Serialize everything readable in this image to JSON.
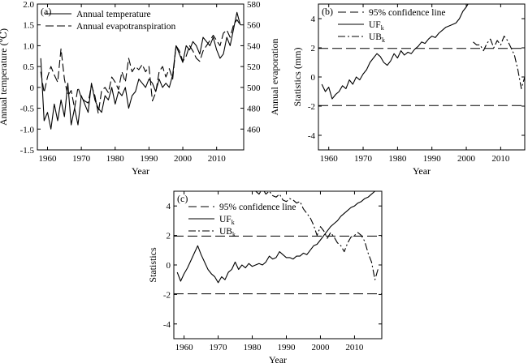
{
  "chart_data": [
    {
      "panel_label": "(a)",
      "type": "line",
      "xlabel": "Year",
      "ylabel": "Annual temperature (℃)",
      "y2label": "Annual evaporation",
      "xlim": [
        1957,
        2018
      ],
      "ylim": [
        -1.5,
        2.0
      ],
      "y2lim": [
        440,
        580
      ],
      "xticks": [
        1960,
        1970,
        1980,
        1990,
        2000,
        2010
      ],
      "yticks": [
        -1.5,
        -1.0,
        -0.5,
        0,
        0.5,
        1.0,
        1.5,
        2.0
      ],
      "yticklabels": [
        "-1.5",
        "-1.0",
        "-0.5",
        "0",
        "0.5",
        "1.0",
        "1.5",
        "2.0"
      ],
      "y2ticks": [
        460,
        480,
        500,
        520,
        540,
        560,
        580
      ],
      "yticklabels2": [
        "460",
        "480",
        "500",
        "520",
        "540",
        "560",
        "580"
      ],
      "xticklabels": [
        "1960",
        "1970",
        "1980",
        "1990",
        "2000",
        "2010"
      ],
      "legend": [
        "Annual temperature",
        "Annual evapotranspiration"
      ],
      "series": [
        {
          "name": "Annual temperature",
          "axis": "left",
          "style": "solid",
          "x": [
            1958,
            1959,
            1960,
            1961,
            1962,
            1963,
            1964,
            1965,
            1966,
            1967,
            1968,
            1969,
            1970,
            1971,
            1972,
            1973,
            1974,
            1975,
            1976,
            1977,
            1978,
            1979,
            1980,
            1981,
            1982,
            1983,
            1984,
            1985,
            1986,
            1987,
            1988,
            1989,
            1990,
            1991,
            1992,
            1993,
            1994,
            1995,
            1996,
            1997,
            1998,
            1999,
            2000,
            2001,
            2002,
            2003,
            2004,
            2005,
            2006,
            2007,
            2008,
            2009,
            2010,
            2011,
            2012,
            2013,
            2014,
            2015,
            2016,
            2017
          ],
          "y": [
            0.7,
            -0.8,
            -0.6,
            -1.0,
            -0.4,
            -0.8,
            -0.3,
            -0.7,
            0.1,
            -0.9,
            -0.5,
            -0.9,
            -0.2,
            -0.4,
            -0.6,
            0.1,
            -0.3,
            -0.5,
            -0.6,
            -0.2,
            -0.3,
            0.0,
            -0.4,
            -0.1,
            -0.2,
            0.0,
            -0.5,
            -0.2,
            -0.1,
            0.2,
            0.1,
            0.0,
            0.2,
            0.1,
            -0.1,
            0.2,
            0.0,
            0.1,
            0.0,
            0.3,
            1.0,
            0.8,
            0.6,
            1.0,
            0.9,
            1.1,
            1.0,
            0.8,
            1.2,
            1.1,
            1.0,
            1.2,
            0.9,
            0.7,
            0.8,
            1.2,
            1.0,
            1.4,
            1.8,
            1.5
          ]
        },
        {
          "name": "Annual evapotranspiration",
          "axis": "right",
          "style": "dashed",
          "x": [
            1958,
            1959,
            1960,
            1961,
            1962,
            1963,
            1964,
            1965,
            1966,
            1967,
            1968,
            1969,
            1970,
            1971,
            1972,
            1973,
            1974,
            1975,
            1976,
            1977,
            1978,
            1979,
            1980,
            1981,
            1982,
            1983,
            1984,
            1985,
            1986,
            1987,
            1988,
            1989,
            1990,
            1991,
            1992,
            1993,
            1994,
            1995,
            1996,
            1997,
            1998,
            1999,
            2000,
            2001,
            2002,
            2003,
            2004,
            2005,
            2006,
            2007,
            2008,
            2009,
            2010,
            2011,
            2012,
            2013,
            2014,
            2015,
            2016,
            2017
          ],
          "y": [
            515,
            495,
            510,
            520,
            512,
            505,
            537,
            508,
            492,
            497,
            480,
            500,
            490,
            487,
            485,
            502,
            492,
            475,
            497,
            500,
            495,
            510,
            505,
            498,
            515,
            505,
            528,
            515,
            520,
            517,
            522,
            515,
            520,
            487,
            495,
            515,
            520,
            510,
            518,
            508,
            540,
            535,
            525,
            530,
            540,
            535,
            528,
            525,
            535,
            540,
            545,
            550,
            545,
            540,
            552,
            555,
            548,
            560,
            565,
            560
          ]
        }
      ]
    },
    {
      "panel_label": "(b)",
      "type": "line",
      "xlabel": "Year",
      "ylabel": "Statistics (mm)",
      "xlim": [
        1957,
        2017
      ],
      "ylim": [
        -5,
        5
      ],
      "xticks": [
        1960,
        1970,
        1980,
        1990,
        2000,
        2010
      ],
      "xticklabels": [
        "1960",
        "1970",
        "1980",
        "1990",
        "2000",
        "2010"
      ],
      "yticks": [
        -4,
        -2,
        0,
        2,
        4
      ],
      "yticklabels": [
        "-4",
        "-2",
        "0",
        "2",
        "4"
      ],
      "legend": [
        {
          "name": "95% confidence line",
          "sub": ""
        },
        {
          "name": "UF",
          "sub": "k"
        },
        {
          "name": "UB",
          "sub": "k"
        }
      ],
      "confidence": [
        1.96,
        -1.96
      ],
      "series": [
        {
          "name": "UF",
          "style": "solid",
          "x": [
            1958,
            1959,
            1960,
            1961,
            1962,
            1963,
            1964,
            1965,
            1966,
            1967,
            1968,
            1969,
            1970,
            1971,
            1972,
            1973,
            1974,
            1975,
            1976,
            1977,
            1978,
            1979,
            1980,
            1981,
            1982,
            1983,
            1984,
            1985,
            1986,
            1987,
            1988,
            1989,
            1990,
            1991,
            1992,
            1993,
            1994,
            1995,
            1996,
            1997,
            1998,
            1999,
            2000,
            2001
          ],
          "y": [
            -0.5,
            -1.0,
            -0.7,
            -1.5,
            -1.2,
            -1.0,
            -0.6,
            -0.8,
            -0.2,
            -0.5,
            0.0,
            -0.2,
            0.2,
            0.5,
            1.0,
            1.3,
            1.6,
            1.4,
            1.0,
            0.8,
            1.1,
            1.6,
            1.3,
            1.8,
            1.5,
            1.7,
            1.6,
            1.9,
            2.1,
            2.4,
            2.3,
            2.6,
            2.8,
            2.7,
            3.0,
            3.2,
            3.4,
            3.5,
            3.6,
            3.7,
            4.0,
            4.5,
            4.8,
            5.2
          ]
        },
        {
          "name": "UB",
          "style": "dashdot",
          "x": [
            2002,
            2003,
            2004,
            2005,
            2006,
            2007,
            2008,
            2009,
            2010,
            2011,
            2012,
            2013,
            2014,
            2015,
            2016,
            2017
          ],
          "y": [
            2.4,
            2.2,
            2.2,
            1.8,
            2.3,
            2.6,
            2.0,
            2.5,
            2.2,
            2.8,
            2.5,
            2.0,
            1.5,
            0.5,
            -0.8,
            0.0
          ]
        }
      ]
    },
    {
      "panel_label": "(c)",
      "type": "line",
      "xlabel": "Year",
      "ylabel": "Statistics",
      "xlim": [
        1957,
        2018
      ],
      "ylim": [
        -5,
        5
      ],
      "xticks": [
        1960,
        1970,
        1980,
        1990,
        2000,
        2010
      ],
      "xticklabels": [
        "1960",
        "1970",
        "1980",
        "1990",
        "2000",
        "2010"
      ],
      "yticks": [
        -4,
        -2,
        0,
        2,
        4
      ],
      "yticklabels": [
        "-4",
        "-2",
        "0",
        "2",
        "4"
      ],
      "legend": [
        {
          "name": "95% confidence line",
          "sub": ""
        },
        {
          "name": "UF",
          "sub": "k"
        },
        {
          "name": "UB",
          "sub": "k"
        }
      ],
      "confidence": [
        1.96,
        -1.96
      ],
      "series": [
        {
          "name": "UF",
          "style": "solid",
          "x": [
            1958,
            1959,
            1960,
            1961,
            1962,
            1963,
            1964,
            1965,
            1966,
            1967,
            1968,
            1969,
            1970,
            1971,
            1972,
            1973,
            1974,
            1975,
            1976,
            1977,
            1978,
            1979,
            1980,
            1981,
            1982,
            1983,
            1984,
            1985,
            1986,
            1987,
            1988,
            1989,
            1990,
            1991,
            1992,
            1993,
            1994,
            1995,
            1996,
            1997,
            1998,
            1999,
            2000,
            2001,
            2002,
            2003,
            2004,
            2005,
            2006,
            2007,
            2008,
            2009,
            2010,
            2011,
            2012,
            2013,
            2014,
            2015,
            2016,
            2017
          ],
          "y": [
            -0.5,
            -1.1,
            -0.6,
            -0.2,
            0.3,
            0.8,
            1.3,
            0.7,
            0.2,
            -0.3,
            -0.6,
            -0.8,
            -1.2,
            -0.8,
            -1.0,
            -0.5,
            -0.3,
            0.2,
            -0.3,
            0.0,
            -0.2,
            0.1,
            -0.1,
            0.0,
            0.1,
            0.0,
            0.2,
            0.6,
            0.4,
            0.5,
            0.9,
            0.7,
            0.5,
            0.5,
            0.4,
            0.6,
            0.6,
            0.8,
            0.7,
            1.0,
            1.3,
            1.4,
            1.7,
            2.0,
            2.3,
            2.6,
            2.8,
            3.0,
            3.3,
            3.5,
            3.7,
            3.9,
            4.0,
            4.2,
            4.3,
            4.5,
            4.6,
            4.8,
            5.0,
            5.2
          ]
        },
        {
          "name": "UB",
          "style": "dashdot",
          "x": [
            1981,
            1982,
            1983,
            1984,
            1985,
            1986,
            1987,
            1988,
            1989,
            1990,
            1991,
            1992,
            1993,
            1994,
            1995,
            1996,
            1997,
            1998,
            1999,
            2000,
            2001,
            2002,
            2003,
            2004,
            2005,
            2006,
            2007,
            2008,
            2009,
            2010,
            2011,
            2012,
            2013,
            2014,
            2015,
            2016,
            2017
          ],
          "y": [
            5.0,
            4.8,
            5.2,
            4.8,
            5.0,
            4.7,
            4.6,
            4.8,
            4.4,
            4.3,
            4.5,
            4.4,
            4.2,
            4.3,
            3.8,
            3.5,
            3.2,
            2.7,
            2.0,
            2.6,
            2.3,
            1.8,
            2.2,
            1.9,
            1.5,
            1.3,
            0.9,
            1.5,
            1.9,
            2.0,
            2.2,
            2.0,
            1.6,
            0.8,
            0.2,
            -1.0,
            -0.2
          ]
        }
      ]
    }
  ]
}
